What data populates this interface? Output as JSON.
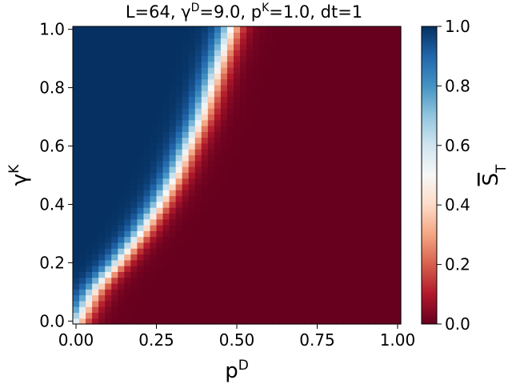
{
  "chart_data": {
    "type": "heatmap",
    "title": {
      "parts": [
        {
          "t": "L=64, "
        },
        {
          "t": "γ"
        },
        {
          "t": "D",
          "sup": true
        },
        {
          "t": "=9.0, "
        },
        {
          "t": "p"
        },
        {
          "t": "K",
          "sup": true
        },
        {
          "t": "=1.0, dt=1"
        }
      ]
    },
    "xlabel": {
      "base": "p",
      "sup": "D"
    },
    "ylabel": {
      "base": "γ",
      "sup": "K"
    },
    "colorbar_label": {
      "base": "S",
      "sub": "T",
      "overline": true
    },
    "xlim": [
      0,
      1
    ],
    "ylim": [
      0,
      1
    ],
    "xticks": [
      "0.00",
      "0.25",
      "0.50",
      "0.75",
      "1.00"
    ],
    "yticks": [
      "0.0",
      "0.2",
      "0.4",
      "0.6",
      "0.8",
      "1.0"
    ],
    "colorbar_ticks": [
      "0.0",
      "0.2",
      "0.4",
      "0.6",
      "0.8",
      "1.0"
    ],
    "grid": {
      "nx": 51,
      "ny": 51
    },
    "transition": {
      "description": "S_T = 0.5 along boundary p_D(γ_K); S_T≈1 to the left, ≈0 to the right",
      "gamma": [
        0.0,
        0.05,
        0.1,
        0.15,
        0.2,
        0.3,
        0.4,
        0.5,
        0.6,
        0.7,
        0.8,
        0.9,
        1.0
      ],
      "p_boundary": [
        0.005,
        0.03,
        0.055,
        0.09,
        0.13,
        0.2,
        0.26,
        0.31,
        0.35,
        0.39,
        0.42,
        0.45,
        0.48
      ],
      "width": 0.022
    },
    "colormap": "RdBu",
    "colormap_stops": [
      "#67001f",
      "#b2182b",
      "#d6604d",
      "#f4a582",
      "#fddbc7",
      "#f7f7f7",
      "#d1e5f0",
      "#92c5de",
      "#4393c3",
      "#2166ac",
      "#053061"
    ]
  }
}
